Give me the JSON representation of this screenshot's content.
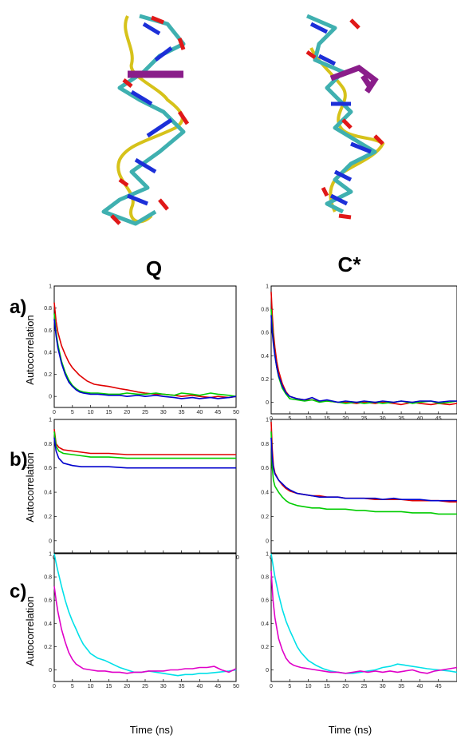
{
  "columns": [
    "Q",
    "C*"
  ],
  "rows": [
    "a)",
    "b)",
    "c)"
  ],
  "ylabel": "Autocorrelation",
  "xlabel": "Time (ns)",
  "chart_data": [
    {
      "id": "a-Q",
      "type": "line",
      "xlim": [
        0,
        50
      ],
      "ylim": [
        -0.1,
        1.0
      ],
      "xticks": [
        0,
        5,
        10,
        15,
        20,
        25,
        30,
        35,
        40,
        45,
        50
      ],
      "yticks": [
        0,
        0.2,
        0.4,
        0.6,
        0.8,
        1
      ],
      "series": [
        {
          "color": "#e00000",
          "x": [
            0,
            0.5,
            1,
            2,
            3,
            4,
            5,
            7,
            9,
            11,
            13,
            15,
            18,
            20,
            23,
            25,
            28,
            30,
            33,
            35,
            38,
            40,
            43,
            45,
            48,
            50
          ],
          "y": [
            0.85,
            0.68,
            0.58,
            0.46,
            0.38,
            0.31,
            0.26,
            0.19,
            0.14,
            0.11,
            0.1,
            0.09,
            0.07,
            0.06,
            0.04,
            0.03,
            0.02,
            0.02,
            0.01,
            0.0,
            0.01,
            0.0,
            -0.01,
            0.0,
            -0.01,
            0.0
          ]
        },
        {
          "color": "#00cc00",
          "x": [
            0,
            0.5,
            1,
            2,
            3,
            4,
            5,
            6,
            7,
            8,
            10,
            12,
            15,
            18,
            20,
            23,
            25,
            28,
            30,
            33,
            35,
            38,
            40,
            43,
            45,
            48,
            50
          ],
          "y": [
            0.75,
            0.58,
            0.47,
            0.32,
            0.22,
            0.15,
            0.1,
            0.07,
            0.05,
            0.04,
            0.03,
            0.03,
            0.02,
            0.02,
            0.03,
            0.02,
            0.02,
            0.03,
            0.02,
            0.01,
            0.03,
            0.02,
            0.01,
            0.03,
            0.02,
            0.01,
            0.0
          ]
        },
        {
          "color": "#0000cc",
          "x": [
            0,
            0.5,
            1,
            2,
            3,
            4,
            5,
            6,
            7,
            8,
            10,
            12,
            15,
            18,
            20,
            23,
            25,
            28,
            30,
            33,
            35,
            38,
            40,
            43,
            45,
            48,
            50
          ],
          "y": [
            0.7,
            0.55,
            0.44,
            0.3,
            0.2,
            0.13,
            0.09,
            0.06,
            0.04,
            0.03,
            0.02,
            0.02,
            0.01,
            0.01,
            0.0,
            0.01,
            0.0,
            0.01,
            0.0,
            -0.01,
            -0.02,
            -0.01,
            -0.02,
            -0.01,
            -0.02,
            -0.01,
            0.0
          ]
        }
      ]
    },
    {
      "id": "a-C",
      "type": "line",
      "xlim": [
        0,
        50
      ],
      "ylim": [
        -0.1,
        1.0
      ],
      "xticks": [
        0,
        5,
        10,
        15,
        20,
        25,
        30,
        35,
        40,
        45
      ],
      "yticks": [
        0,
        0.2,
        0.4,
        0.6,
        0.8,
        1
      ],
      "series": [
        {
          "color": "#e00000",
          "x": [
            0,
            0.3,
            0.6,
            1,
            1.5,
            2,
            3,
            4,
            5,
            7,
            9,
            11,
            13,
            15,
            18,
            20,
            23,
            25,
            28,
            30,
            33,
            35,
            38,
            40,
            43,
            45,
            48,
            50
          ],
          "y": [
            0.95,
            0.75,
            0.6,
            0.47,
            0.35,
            0.27,
            0.16,
            0.09,
            0.05,
            0.03,
            0.02,
            0.02,
            0.01,
            0.01,
            0.0,
            0.0,
            -0.01,
            0.0,
            -0.01,
            0.0,
            -0.01,
            -0.02,
            0.0,
            -0.01,
            -0.02,
            -0.01,
            -0.02,
            -0.01
          ]
        },
        {
          "color": "#00cc00",
          "x": [
            0,
            0.3,
            0.6,
            1,
            1.5,
            2,
            3,
            4,
            5,
            7,
            9,
            11,
            13,
            15,
            18,
            20,
            23,
            25,
            28,
            30,
            33,
            35,
            38,
            40,
            43,
            45,
            48,
            50
          ],
          "y": [
            0.8,
            0.65,
            0.52,
            0.4,
            0.3,
            0.22,
            0.12,
            0.07,
            0.03,
            0.02,
            0.01,
            0.02,
            0.0,
            0.01,
            0.0,
            -0.01,
            0.0,
            -0.01,
            0.0,
            -0.01,
            0.0,
            0.01,
            -0.01,
            0.0,
            0.01,
            -0.01,
            0.0,
            0.01
          ]
        },
        {
          "color": "#0000cc",
          "x": [
            0,
            0.3,
            0.6,
            1,
            1.5,
            2,
            3,
            4,
            5,
            7,
            9,
            11,
            13,
            15,
            18,
            20,
            23,
            25,
            28,
            30,
            33,
            35,
            38,
            40,
            43,
            45,
            48,
            50
          ],
          "y": [
            0.75,
            0.6,
            0.5,
            0.4,
            0.3,
            0.23,
            0.14,
            0.08,
            0.05,
            0.03,
            0.02,
            0.04,
            0.01,
            0.02,
            0.0,
            0.01,
            0.0,
            0.01,
            0.0,
            0.01,
            0.0,
            0.01,
            0.0,
            0.01,
            0.01,
            0.0,
            0.01,
            0.01
          ]
        }
      ]
    },
    {
      "id": "b-Q",
      "type": "line",
      "xlim": [
        0,
        20
      ],
      "ylim": [
        -0.1,
        1.0
      ],
      "xticks": [
        0,
        2,
        4,
        6,
        8,
        10,
        12,
        14,
        16,
        18,
        20
      ],
      "yticks": [
        0,
        0.2,
        0.4,
        0.6,
        0.8,
        1
      ],
      "series": [
        {
          "color": "#e00000",
          "x": [
            0,
            0.2,
            0.5,
            1,
            2,
            3,
            4,
            6,
            8,
            10,
            12,
            14,
            16,
            18,
            20
          ],
          "y": [
            0.92,
            0.8,
            0.77,
            0.75,
            0.74,
            0.73,
            0.72,
            0.72,
            0.71,
            0.71,
            0.71,
            0.71,
            0.71,
            0.71,
            0.71
          ]
        },
        {
          "color": "#00cc00",
          "x": [
            0,
            0.2,
            0.5,
            1,
            2,
            3,
            4,
            6,
            8,
            10,
            12,
            14,
            16,
            18,
            20
          ],
          "y": [
            0.9,
            0.78,
            0.74,
            0.72,
            0.71,
            0.7,
            0.69,
            0.69,
            0.68,
            0.68,
            0.68,
            0.68,
            0.68,
            0.68,
            0.68
          ]
        },
        {
          "color": "#0000cc",
          "x": [
            0,
            0.2,
            0.5,
            1,
            2,
            3,
            4,
            6,
            8,
            10,
            12,
            14,
            16,
            18,
            20
          ],
          "y": [
            0.85,
            0.74,
            0.68,
            0.64,
            0.62,
            0.61,
            0.61,
            0.61,
            0.6,
            0.6,
            0.6,
            0.6,
            0.6,
            0.6,
            0.6
          ]
        }
      ]
    },
    {
      "id": "b-C",
      "type": "line",
      "xlim": [
        0,
        50
      ],
      "ylim": [
        -0.1,
        1.0
      ],
      "xticks": [
        0,
        5,
        10,
        15,
        20,
        25,
        30,
        35,
        40,
        45
      ],
      "yticks": [
        0,
        0.2,
        0.4,
        0.6,
        0.8,
        1
      ],
      "series": [
        {
          "color": "#e00000",
          "x": [
            0,
            0.3,
            0.6,
            1,
            2,
            3,
            4,
            5,
            7,
            9,
            11,
            13,
            15,
            18,
            20,
            23,
            25,
            28,
            30,
            33,
            35,
            38,
            40,
            43,
            45,
            48,
            50
          ],
          "y": [
            0.98,
            0.75,
            0.62,
            0.56,
            0.5,
            0.46,
            0.43,
            0.41,
            0.39,
            0.38,
            0.37,
            0.37,
            0.36,
            0.36,
            0.35,
            0.35,
            0.35,
            0.34,
            0.34,
            0.34,
            0.34,
            0.33,
            0.33,
            0.33,
            0.33,
            0.32,
            0.32
          ]
        },
        {
          "color": "#00cc00",
          "x": [
            0,
            0.3,
            0.6,
            1,
            2,
            3,
            4,
            5,
            7,
            9,
            11,
            13,
            15,
            18,
            20,
            23,
            25,
            28,
            30,
            33,
            35,
            38,
            40,
            43,
            45,
            48,
            50
          ],
          "y": [
            0.9,
            0.6,
            0.5,
            0.45,
            0.4,
            0.36,
            0.33,
            0.31,
            0.29,
            0.28,
            0.27,
            0.27,
            0.26,
            0.26,
            0.26,
            0.25,
            0.25,
            0.24,
            0.24,
            0.24,
            0.24,
            0.23,
            0.23,
            0.23,
            0.22,
            0.22,
            0.22
          ]
        },
        {
          "color": "#0000cc",
          "x": [
            0,
            0.3,
            0.6,
            1,
            2,
            3,
            4,
            5,
            7,
            9,
            11,
            13,
            15,
            18,
            20,
            23,
            25,
            28,
            30,
            33,
            35,
            38,
            40,
            43,
            45,
            48,
            50
          ],
          "y": [
            0.85,
            0.68,
            0.6,
            0.55,
            0.5,
            0.47,
            0.44,
            0.42,
            0.39,
            0.38,
            0.37,
            0.36,
            0.36,
            0.36,
            0.35,
            0.35,
            0.35,
            0.35,
            0.34,
            0.35,
            0.34,
            0.34,
            0.34,
            0.33,
            0.33,
            0.33,
            0.33
          ]
        }
      ]
    },
    {
      "id": "c-Q",
      "type": "line",
      "xlim": [
        0,
        50
      ],
      "ylim": [
        -0.1,
        1.0
      ],
      "xticks": [
        0,
        5,
        10,
        15,
        20,
        25,
        30,
        35,
        40,
        45,
        50
      ],
      "yticks": [
        0,
        0.2,
        0.4,
        0.6,
        0.8,
        1
      ],
      "series": [
        {
          "color": "#00e0e8",
          "x": [
            0,
            0.5,
            1,
            2,
            3,
            4,
            5,
            6,
            7,
            8,
            10,
            12,
            14,
            16,
            18,
            20,
            22,
            24,
            26,
            28,
            30,
            32,
            34,
            36,
            38,
            40,
            42,
            45,
            48,
            50
          ],
          "y": [
            1.0,
            0.92,
            0.85,
            0.72,
            0.6,
            0.5,
            0.42,
            0.35,
            0.28,
            0.22,
            0.14,
            0.1,
            0.08,
            0.05,
            0.02,
            0.0,
            -0.02,
            -0.02,
            -0.01,
            -0.02,
            -0.03,
            -0.04,
            -0.05,
            -0.04,
            -0.04,
            -0.03,
            -0.03,
            -0.02,
            -0.01,
            0.0
          ]
        },
        {
          "color": "#e000c8",
          "x": [
            0,
            0.5,
            1,
            2,
            3,
            4,
            5,
            6,
            7,
            8,
            10,
            12,
            14,
            16,
            18,
            20,
            22,
            24,
            26,
            28,
            30,
            32,
            34,
            36,
            38,
            40,
            42,
            44,
            46,
            48,
            50
          ],
          "y": [
            0.72,
            0.6,
            0.5,
            0.35,
            0.24,
            0.15,
            0.09,
            0.05,
            0.03,
            0.01,
            0.0,
            -0.01,
            -0.01,
            -0.02,
            -0.02,
            -0.03,
            -0.02,
            -0.02,
            -0.01,
            -0.01,
            -0.01,
            0.0,
            0.0,
            0.01,
            0.01,
            0.02,
            0.02,
            0.03,
            0.0,
            -0.02,
            0.01
          ]
        }
      ]
    },
    {
      "id": "c-C",
      "type": "line",
      "xlim": [
        0,
        50
      ],
      "ylim": [
        -0.1,
        1.0
      ],
      "xticks": [
        0,
        5,
        10,
        15,
        20,
        25,
        30,
        35,
        40,
        45
      ],
      "yticks": [
        0,
        0.2,
        0.4,
        0.6,
        0.8,
        1
      ],
      "series": [
        {
          "color": "#00e0e8",
          "x": [
            0,
            0.5,
            1,
            2,
            3,
            4,
            5,
            6,
            7,
            8,
            10,
            12,
            14,
            16,
            18,
            20,
            22,
            24,
            26,
            28,
            30,
            32,
            34,
            36,
            38,
            40,
            42,
            45,
            48,
            50
          ],
          "y": [
            1.0,
            0.9,
            0.8,
            0.65,
            0.52,
            0.42,
            0.34,
            0.27,
            0.2,
            0.15,
            0.08,
            0.04,
            0.01,
            -0.01,
            -0.02,
            -0.03,
            -0.03,
            -0.02,
            -0.01,
            0.0,
            0.02,
            0.03,
            0.05,
            0.04,
            0.03,
            0.02,
            0.01,
            0.0,
            -0.01,
            -0.02
          ]
        },
        {
          "color": "#e000c8",
          "x": [
            0,
            0.5,
            1,
            2,
            3,
            4,
            5,
            6,
            7,
            8,
            10,
            12,
            14,
            16,
            18,
            20,
            22,
            24,
            26,
            28,
            30,
            32,
            34,
            36,
            38,
            40,
            42,
            44,
            46,
            48,
            50
          ],
          "y": [
            0.85,
            0.6,
            0.45,
            0.27,
            0.17,
            0.1,
            0.06,
            0.04,
            0.03,
            0.02,
            0.01,
            0.0,
            -0.01,
            -0.02,
            -0.02,
            -0.03,
            -0.02,
            -0.01,
            -0.02,
            -0.01,
            -0.02,
            -0.01,
            -0.02,
            -0.01,
            0.0,
            -0.02,
            -0.03,
            -0.01,
            0.0,
            0.01,
            0.02
          ]
        }
      ]
    }
  ],
  "colors": {
    "backbone": "#d6c21a",
    "carbon": "#3fb0b0",
    "oxygen": "#e01818",
    "nitrogen": "#1c2fd8",
    "highlight": "#8a1d8a"
  }
}
